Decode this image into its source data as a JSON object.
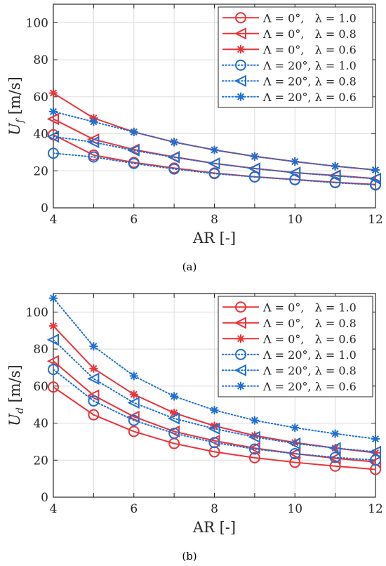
{
  "colors": {
    "red": "#e8333a",
    "blue": "#1f6fd1",
    "grid": "#dcdcdc",
    "axis": "#262626"
  },
  "chart_data": [
    {
      "type": "line",
      "caption": "(a)",
      "xlabel": "AR [-]",
      "ylabel_main": "U",
      "ylabel_sub": "f",
      "ylabel_unit": " [m/s]",
      "xlim": [
        4,
        12
      ],
      "ylim": [
        0,
        110
      ],
      "xticks": [
        "4",
        "6",
        "8",
        "10",
        "12"
      ],
      "yticks": [
        "0",
        "20",
        "40",
        "60",
        "80",
        "100"
      ],
      "grid": true,
      "legend_position": "top-right",
      "x": [
        4,
        5,
        6,
        7,
        8,
        9,
        10,
        11,
        12
      ],
      "series": [
        {
          "name": "Λ = 0°,   λ = 1.0",
          "color": "red",
          "marker": "circle",
          "line": "solid",
          "values": [
            39.5,
            28.5,
            24.5,
            21.5,
            18.8,
            16.8,
            15.3,
            13.8,
            12.6
          ]
        },
        {
          "name": "Λ = 0°,   λ = 0.8",
          "color": "red",
          "marker": "triangle-left",
          "line": "solid",
          "values": [
            48,
            37,
            31.5,
            27.5,
            24,
            21.3,
            19,
            17.5,
            15.8
          ]
        },
        {
          "name": "Λ = 0°,   λ = 0.6",
          "color": "red",
          "marker": "asterisk",
          "line": "solid",
          "values": [
            62,
            48.5,
            41,
            35.5,
            31.3,
            27.8,
            25,
            22.5,
            20.5
          ]
        },
        {
          "name": "Λ = 20°, λ = 1.0",
          "color": "blue",
          "marker": "circle",
          "line": "dotted",
          "values": [
            29.5,
            27.5,
            24,
            21,
            18.5,
            16.7,
            15.2,
            13.6,
            12.4
          ]
        },
        {
          "name": "Λ = 20°, λ = 0.8",
          "color": "blue",
          "marker": "triangle-left",
          "line": "dotted",
          "values": [
            38.5,
            35.5,
            31,
            27.3,
            24,
            21.2,
            19,
            17.3,
            15.7
          ]
        },
        {
          "name": "Λ = 20°, λ = 0.6",
          "color": "blue",
          "marker": "asterisk",
          "line": "dotted",
          "values": [
            52,
            46.5,
            41,
            35.5,
            31.3,
            27.8,
            25,
            22.5,
            20.5
          ]
        }
      ]
    },
    {
      "type": "line",
      "caption": "(b)",
      "xlabel": "AR [-]",
      "ylabel_main": "U",
      "ylabel_sub": "d",
      "ylabel_unit": " [m/s]",
      "xlim": [
        4,
        12
      ],
      "ylim": [
        0,
        110
      ],
      "xticks": [
        "4",
        "6",
        "8",
        "10",
        "12"
      ],
      "yticks": [
        "0",
        "20",
        "40",
        "60",
        "80",
        "100"
      ],
      "grid": true,
      "legend_position": "top-right",
      "x": [
        4,
        5,
        6,
        7,
        8,
        9,
        10,
        11,
        12
      ],
      "series": [
        {
          "name": "Λ = 0°,   λ = 1.0",
          "color": "red",
          "marker": "circle",
          "line": "solid",
          "values": [
            59.5,
            44.5,
            35.5,
            29,
            24.5,
            21.3,
            18.8,
            16.8,
            15
          ]
        },
        {
          "name": "Λ = 0°,   λ = 0.8",
          "color": "red",
          "marker": "triangle-left",
          "line": "solid",
          "values": [
            73.5,
            55,
            43.5,
            35.5,
            30.5,
            26.5,
            23.5,
            21,
            19
          ]
        },
        {
          "name": "Λ = 0°,   λ = 0.6",
          "color": "red",
          "marker": "asterisk",
          "line": "solid",
          "values": [
            92.5,
            69.5,
            55.5,
            45.5,
            38.5,
            33.3,
            29.5,
            26.5,
            24
          ]
        },
        {
          "name": "Λ = 20°, λ = 1.0",
          "color": "blue",
          "marker": "circle",
          "line": "dotted",
          "values": [
            69,
            52,
            41.5,
            34.5,
            29.5,
            26,
            23.5,
            21.5,
            20
          ]
        },
        {
          "name": "Λ = 20°, λ = 0.8",
          "color": "blue",
          "marker": "triangle-left",
          "line": "dotted",
          "values": [
            85,
            64,
            51,
            42.5,
            37,
            32.5,
            29,
            26.5,
            24.5
          ]
        },
        {
          "name": "Λ = 20°, λ = 0.6",
          "color": "blue",
          "marker": "asterisk",
          "line": "dotted",
          "values": [
            107.5,
            81.5,
            65.5,
            54.5,
            47,
            41.5,
            37.5,
            34.3,
            31.5
          ]
        }
      ]
    }
  ]
}
